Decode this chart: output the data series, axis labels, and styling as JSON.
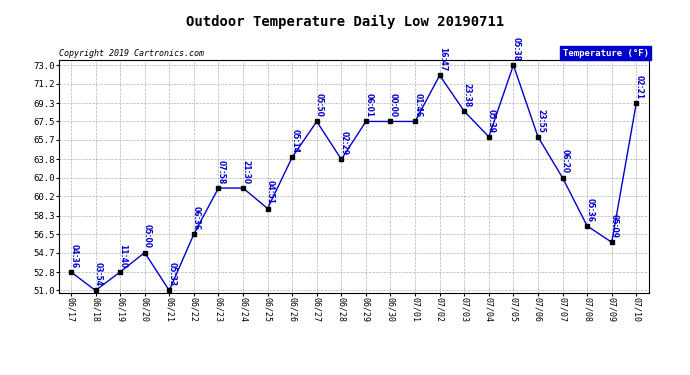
{
  "title": "Outdoor Temperature Daily Low 20190711",
  "copyright": "Copyright 2019 Cartronics.com",
  "legend_label": "Temperature (°F)",
  "x_labels": [
    "06/17",
    "06/18",
    "06/19",
    "06/20",
    "06/21",
    "06/22",
    "06/23",
    "06/24",
    "06/25",
    "06/26",
    "06/27",
    "06/28",
    "06/29",
    "06/30",
    "07/01",
    "07/02",
    "07/03",
    "07/04",
    "07/05",
    "07/06",
    "07/07",
    "07/08",
    "07/09",
    "07/10"
  ],
  "y_values": [
    52.8,
    51.0,
    52.8,
    54.7,
    51.0,
    56.5,
    61.0,
    61.0,
    59.0,
    64.0,
    67.5,
    63.8,
    67.5,
    67.5,
    67.5,
    72.0,
    68.5,
    66.0,
    73.0,
    66.0,
    62.0,
    57.3,
    55.7,
    69.3
  ],
  "time_labels": [
    "04:36",
    "03:54",
    "11:40",
    "05:00",
    "05:33",
    "06:36",
    "07:58",
    "21:30",
    "04:51",
    "05:14",
    "05:50",
    "02:29",
    "06:01",
    "00:00",
    "01:46",
    "16:47",
    "23:38",
    "05:39",
    "05:38",
    "23:55",
    "06:20",
    "05:36",
    "05:09",
    "02:21"
  ],
  "ylim_min": 51.0,
  "ylim_max": 73.0,
  "yticks": [
    51.0,
    52.8,
    54.7,
    56.5,
    58.3,
    60.2,
    62.0,
    63.8,
    65.7,
    67.5,
    69.3,
    71.2,
    73.0
  ],
  "line_color": "#0000cc",
  "marker_color": "#000000",
  "bg_color": "#ffffff",
  "grid_color": "#aaaaaa",
  "text_color": "#0000cc",
  "title_color": "#000000",
  "legend_bg": "#0000cc",
  "legend_text_color": "#ffffff"
}
